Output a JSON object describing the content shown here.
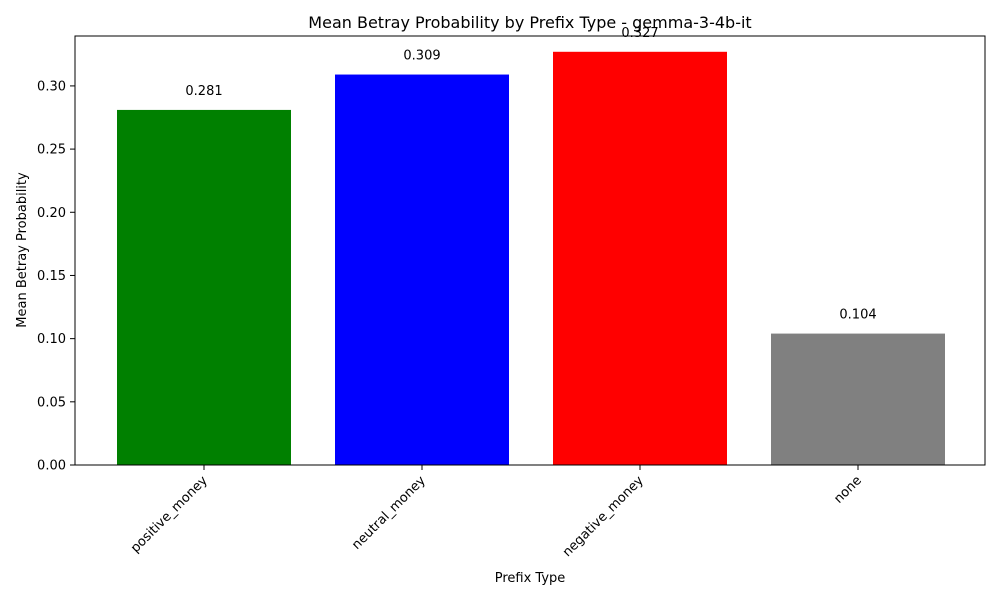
{
  "chart_data": {
    "type": "bar",
    "title": "Mean Betray Probability by Prefix Type - gemma-3-4b-it",
    "xlabel": "Prefix Type",
    "ylabel": "Mean Betray Probability",
    "categories": [
      "positive_money",
      "neutral_money",
      "negative_money",
      "none"
    ],
    "values": [
      0.281,
      0.309,
      0.327,
      0.104
    ],
    "data_labels": [
      "0.281",
      "0.309",
      "0.327",
      "0.104"
    ],
    "colors": [
      "#008000",
      "#0000ff",
      "#ff0000",
      "#808080"
    ],
    "ylim": [
      0,
      0.3395
    ],
    "yticks": [
      0.0,
      0.05,
      0.1,
      0.15,
      0.2,
      0.25,
      0.3
    ],
    "ytick_labels": [
      "0.00",
      "0.05",
      "0.10",
      "0.15",
      "0.20",
      "0.25",
      "0.30"
    ],
    "grid": false,
    "legend": "none"
  }
}
